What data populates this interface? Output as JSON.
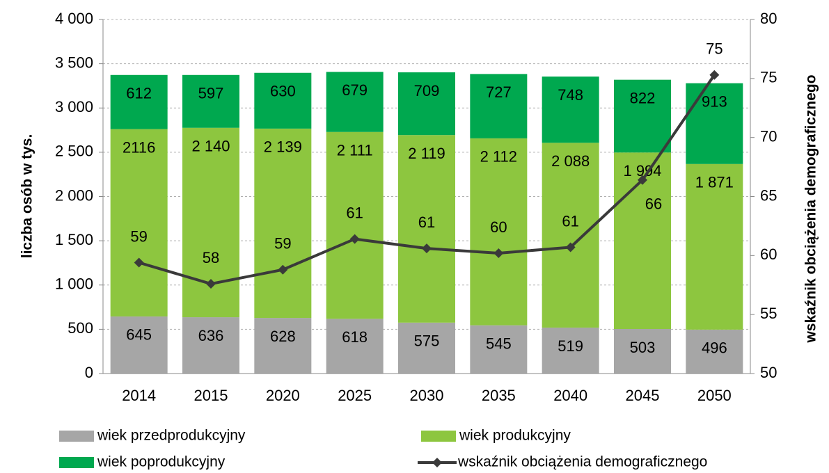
{
  "chart_data": {
    "type": "bar",
    "stacked": true,
    "y_label": "liczba osób w tys.",
    "y2_label": "wskaźnik obciążenia demograficznego",
    "categories": [
      "2014",
      "2015",
      "2020",
      "2025",
      "2030",
      "2035",
      "2040",
      "2045",
      "2050"
    ],
    "series": [
      {
        "name": "wiek przedprodukcyjny",
        "color": "#a6a6a6",
        "values": [
          645,
          636,
          628,
          618,
          575,
          545,
          519,
          503,
          496
        ]
      },
      {
        "name": "wiek produkcyjny",
        "color": "#8dc63f",
        "values": [
          2116,
          2140,
          2139,
          2111,
          2119,
          2112,
          2088,
          1994,
          1871
        ],
        "value_labels": [
          "2116",
          "2 140",
          "2 139",
          "2 111",
          "2 119",
          "2 112",
          "2 088",
          "1 994",
          "1 871"
        ]
      },
      {
        "name": "wiek poprodukcyjny",
        "color": "#00a84f",
        "values": [
          612,
          597,
          630,
          679,
          709,
          727,
          748,
          822,
          913
        ]
      },
      {
        "name": "wskaźnik obciążenia demograficznego",
        "type": "line",
        "axis": "y2",
        "color": "#3a3a3a",
        "values": [
          59.4,
          57.6,
          58.8,
          61.4,
          60.6,
          60.2,
          60.7,
          66.4,
          75.3
        ],
        "value_labels": [
          "59",
          "58",
          "59",
          "61",
          "61",
          "60",
          "61",
          "66",
          "75"
        ]
      }
    ],
    "ylim": [
      0,
      4000
    ],
    "yticks": [
      0,
      500,
      {
        "value": 1000,
        "label": "1 000"
      },
      {
        "value": 1500,
        "label": "1 500"
      },
      {
        "value": 2000,
        "label": "2 000"
      },
      {
        "value": 2500,
        "label": "2 500"
      },
      {
        "value": 3000,
        "label": "3 000"
      },
      {
        "value": 3500,
        "label": "3 500"
      },
      {
        "value": 4000,
        "label": "4 000"
      }
    ],
    "y2lim": [
      50,
      80
    ],
    "y2ticks": [
      50,
      55,
      60,
      65,
      70,
      75,
      80
    ],
    "grid": true,
    "legend": "bottom"
  }
}
